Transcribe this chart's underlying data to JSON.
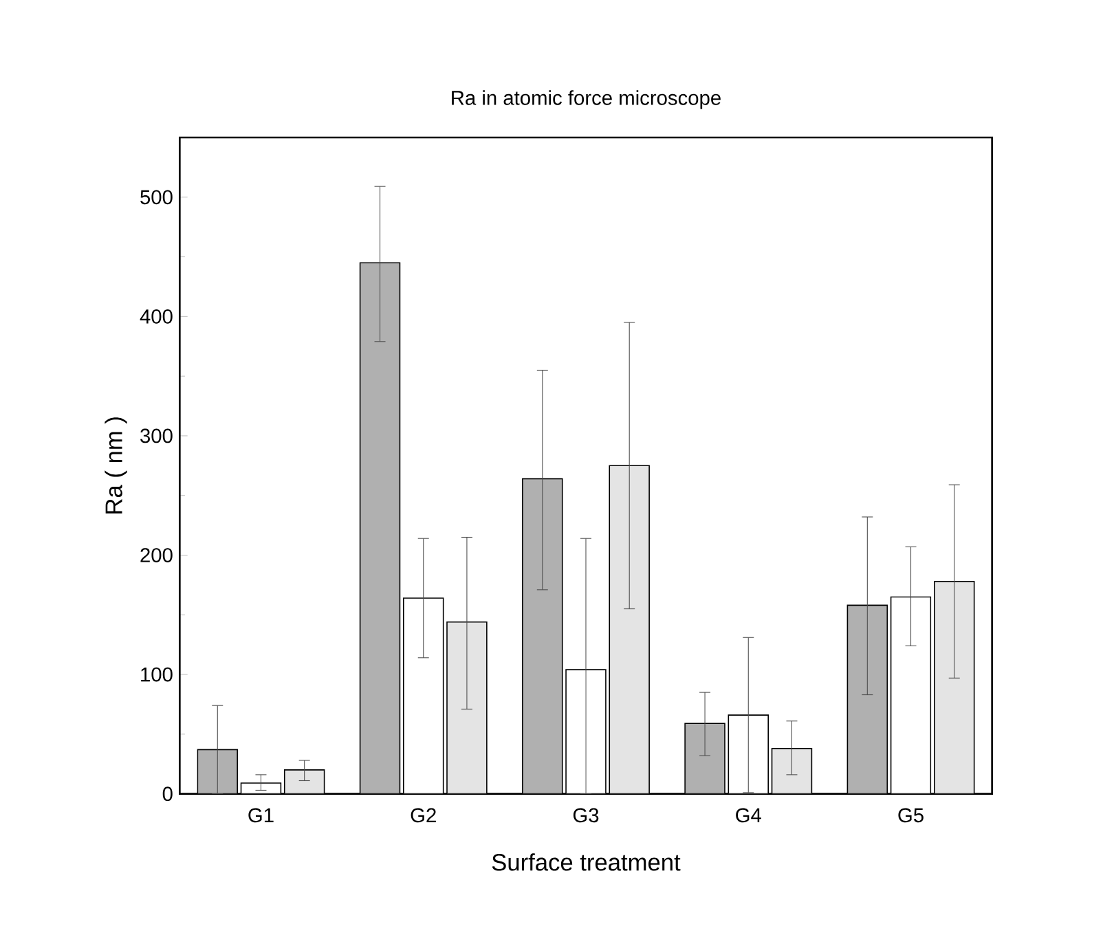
{
  "chart_data": {
    "type": "bar",
    "title": "Ra in atomic force microscope",
    "xlabel": "Surface treatment",
    "ylabel": "Ra ( nm )",
    "categories": [
      "G1",
      "G2",
      "G3",
      "G4",
      "G5"
    ],
    "series": [
      {
        "color": "#b0b0b0",
        "values": [
          37,
          445,
          264,
          59,
          158
        ],
        "errors": [
          [
            0,
            74
          ],
          [
            379,
            509
          ],
          [
            171,
            355
          ],
          [
            32,
            85
          ],
          [
            83,
            232
          ]
        ]
      },
      {
        "color": "#ffffff",
        "values": [
          9,
          164,
          104,
          66,
          165
        ],
        "errors": [
          [
            3,
            16
          ],
          [
            114,
            214
          ],
          [
            0,
            214
          ],
          [
            1,
            131
          ],
          [
            124,
            207
          ]
        ]
      },
      {
        "color": "#e4e4e4",
        "values": [
          20,
          144,
          275,
          38,
          178
        ],
        "errors": [
          [
            11,
            28
          ],
          [
            71,
            215
          ],
          [
            155,
            395
          ],
          [
            16,
            61
          ],
          [
            97,
            259
          ]
        ]
      }
    ],
    "ylim": [
      0,
      550
    ],
    "yticks": [
      0,
      100,
      200,
      300,
      400,
      500
    ],
    "grid": false
  }
}
